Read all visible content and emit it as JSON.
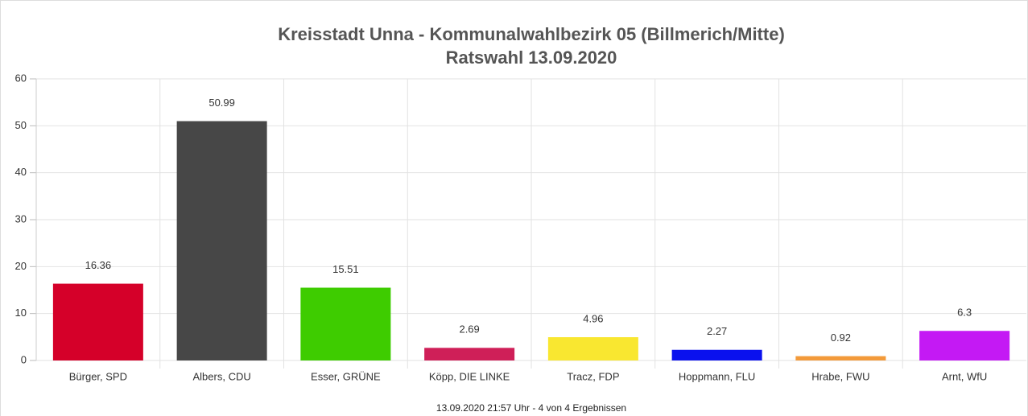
{
  "chart_data": {
    "type": "bar",
    "title": "Kreisstadt Unna - Kommunalwahlbezirk 05 (Billmerich/Mitte)",
    "subtitle": "Ratswahl 13.09.2020",
    "caption": "13.09.2020 21:57 Uhr - 4 von 4 Ergebnissen",
    "categories": [
      "Bürger, SPD",
      "Albers, CDU",
      "Esser, GRÜNE",
      "Köpp, DIE LINKE",
      "Tracz, FDP",
      "Hoppmann, FLU",
      "Hrabe, FWU",
      "Arnt, WfU"
    ],
    "values": [
      16.36,
      50.99,
      15.51,
      2.69,
      4.96,
      2.27,
      0.92,
      6.3
    ],
    "colors": [
      "#d50029",
      "#474747",
      "#3ecc00",
      "#cf1f58",
      "#f9e730",
      "#0a11ee",
      "#f39a3a",
      "#c419f4"
    ],
    "ylim": [
      0,
      60
    ],
    "yticks": [
      0,
      10,
      20,
      30,
      40,
      50,
      60
    ],
    "grid": true
  }
}
